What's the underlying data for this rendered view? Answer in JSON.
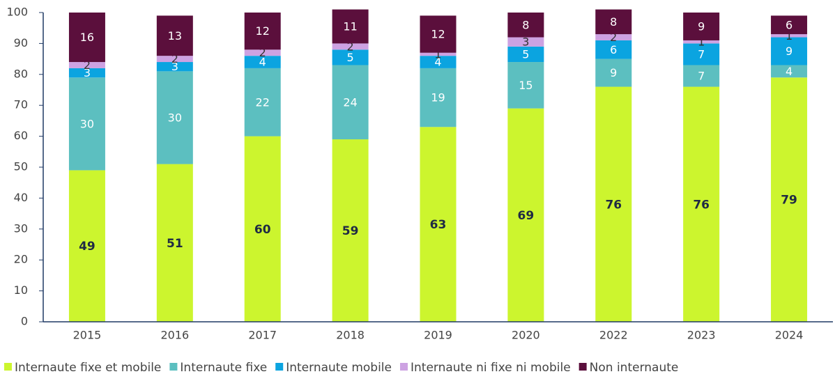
{
  "chart_data": {
    "type": "stacked_bar",
    "categories": [
      "2015",
      "2016",
      "2017",
      "2018",
      "2019",
      "2020",
      "2022",
      "2023",
      "2024"
    ],
    "series": [
      {
        "name": "Internaute fixe et mobile",
        "color": "#ccf52e",
        "values": [
          49,
          51,
          60,
          59,
          63,
          69,
          76,
          76,
          79
        ]
      },
      {
        "name": "Internaute fixe",
        "color": "#5cbfc0",
        "values": [
          30,
          30,
          22,
          24,
          19,
          15,
          9,
          7,
          4
        ]
      },
      {
        "name": "Internaute mobile",
        "color": "#0ba4e0",
        "values": [
          3,
          3,
          4,
          5,
          4,
          5,
          6,
          7,
          9
        ]
      },
      {
        "name": "Internaute ni fixe ni mobile",
        "color": "#cda2e2",
        "values": [
          2,
          2,
          2,
          2,
          1,
          3,
          2,
          1,
          1
        ]
      },
      {
        "name": "Non internaute",
        "color": "#5b0f3c",
        "values": [
          16,
          13,
          12,
          11,
          12,
          8,
          8,
          9,
          6
        ]
      }
    ],
    "ylim": [
      0,
      100
    ],
    "yticks": [
      0,
      10,
      20,
      30,
      40,
      50,
      60,
      70,
      80,
      90,
      100
    ],
    "legend": "bottom"
  }
}
